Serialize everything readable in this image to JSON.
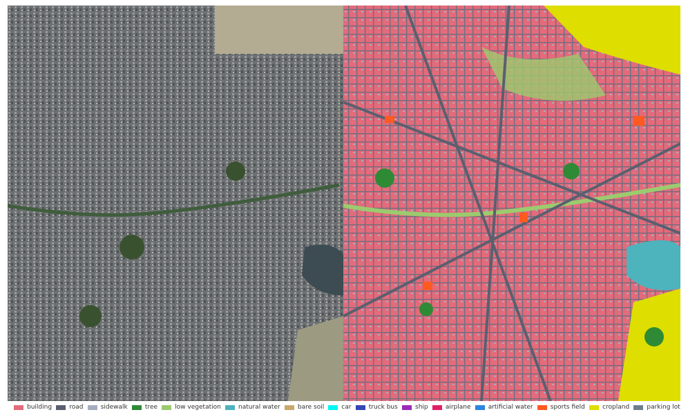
{
  "legend": {
    "items": [
      {
        "label": "building",
        "color": "#e36b7b"
      },
      {
        "label": "road",
        "color": "#5b5f6f"
      },
      {
        "label": "sidewalk",
        "color": "#a7adbf"
      },
      {
        "label": "tree",
        "color": "#2f8a35"
      },
      {
        "label": "low vegetation",
        "color": "#9ccb6e"
      },
      {
        "label": "natural water",
        "color": "#4db3bd"
      },
      {
        "label": "bare soil",
        "color": "#c9a96b"
      },
      {
        "label": "car",
        "color": "#00f5f5"
      },
      {
        "label": "truck bus",
        "color": "#3547b5"
      },
      {
        "label": "ship",
        "color": "#9a2ab8"
      },
      {
        "label": "airplane",
        "color": "#e01e66"
      },
      {
        "label": "artificial water",
        "color": "#2b86e0"
      },
      {
        "label": "sports field",
        "color": "#ff5a1f"
      },
      {
        "label": "cropland",
        "color": "#dede00"
      },
      {
        "label": "parking lot",
        "color": "#6f7f8c"
      }
    ]
  }
}
